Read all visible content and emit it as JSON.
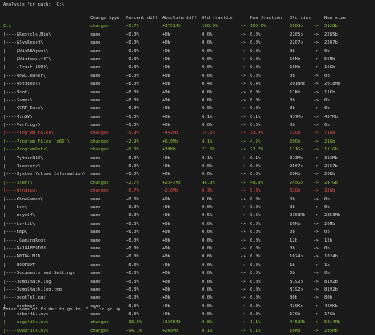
{
  "heading": "Analysis for path:  C:\\",
  "columns": [
    "",
    "Change type",
    "Percent diff",
    "Absolute diff",
    "Old fraction",
    "",
    "New fraction",
    "Old size",
    "",
    "New size"
  ],
  "colors": {
    "background": "#1a1a1a",
    "text": "#d6d6d6",
    "changed_increase": "#8ec63f",
    "changed_decrease": "#e8564e"
  },
  "rows": [
    {
      "status": "increase",
      "path": "C:\\",
      "type": "changed",
      "pd": "+0.7%",
      "ad": "+3781Mb",
      "of": "100.0%",
      "a1": "->",
      "nf": "100.0%",
      "os": "508Gb",
      "a2": "->",
      "ns": "512Gb"
    },
    {
      "status": "same",
      "path": "|----$Recycle.Bin\\",
      "type": "same",
      "pd": "+0.0%",
      "ad": "+0b",
      "of": "0.0%",
      "a1": "->",
      "nf": "0.0%",
      "os": "2285b",
      "a2": "->",
      "ns": "2285b"
    },
    {
      "status": "same",
      "path": "|----$SysReset\\",
      "type": "same",
      "pd": "+0.0%",
      "ad": "+0b",
      "of": "0.0%",
      "a1": "->",
      "nf": "0.0%",
      "os": "2207b",
      "a2": "->",
      "ns": "2207b"
    },
    {
      "status": "same",
      "path": "|----$WinREAgent\\",
      "type": "same",
      "pd": "+0.0%",
      "ad": "+0b",
      "of": "0.0%",
      "a1": "->",
      "nf": "0.0%",
      "os": "0b",
      "a2": "->",
      "ns": "0b"
    },
    {
      "status": "same",
      "path": "|----$Windows.~BT\\",
      "type": "same",
      "pd": "+0.0%",
      "ad": "+0b",
      "of": "0.0%",
      "a1": "->",
      "nf": "0.0%",
      "os": "56Mb",
      "a2": "->",
      "ns": "56Mb"
    },
    {
      "status": "same",
      "path": "|----.Trash-1000\\",
      "type": "same",
      "pd": "+0.0%",
      "ad": "+0b",
      "of": "0.0%",
      "a1": "->",
      "nf": "0.0%",
      "os": "16Kb",
      "a2": "->",
      "ns": "16Kb"
    },
    {
      "status": "same",
      "path": "|----AdwCleaner\\",
      "type": "same",
      "pd": "+0.0%",
      "ad": "+0b",
      "of": "0.0%",
      "a1": "->",
      "nf": "0.0%",
      "os": "0b",
      "a2": "->",
      "ns": "0b"
    },
    {
      "status": "same",
      "path": "|----Autodesk\\",
      "type": "same",
      "pd": "+0.0%",
      "ad": "+0b",
      "of": "0.4%",
      "a1": "->",
      "nf": "0.4%",
      "os": "2018Mb",
      "a2": "->",
      "ns": "2018Mb"
    },
    {
      "status": "same",
      "path": "|----Boot\\",
      "type": "same",
      "pd": "+0.0%",
      "ad": "+0b",
      "of": "0.0%",
      "a1": "->",
      "nf": "0.0%",
      "os": "11Kb",
      "a2": "->",
      "ns": "11Kb"
    },
    {
      "status": "same",
      "path": "|----Games\\",
      "type": "same",
      "pd": "+0.0%",
      "ad": "+0b",
      "of": "0.0%",
      "a1": "->",
      "nf": "0.0%",
      "os": "0b",
      "a2": "->",
      "ns": "0b"
    },
    {
      "status": "same",
      "path": "|----KVRT_Data\\",
      "type": "same",
      "pd": "+0.0%",
      "ad": "+0b",
      "of": "0.0%",
      "a1": "->",
      "nf": "0.0%",
      "os": "0b",
      "a2": "->",
      "ns": "0b"
    },
    {
      "status": "same",
      "path": "|----MinGW\\",
      "type": "same",
      "pd": "+0.0%",
      "ad": "+0b",
      "of": "0.1%",
      "a1": "->",
      "nf": "0.1%",
      "os": "437Mb",
      "a2": "->",
      "ns": "437Mb"
    },
    {
      "status": "same",
      "path": "|----PerfLogs\\",
      "type": "same",
      "pd": "+0.0%",
      "ad": "+0b",
      "of": "0.0%",
      "a1": "->",
      "nf": "0.0%",
      "os": "0b",
      "a2": "->",
      "ns": "0b"
    },
    {
      "status": "decrease",
      "path": "|----Program Files\\",
      "type": "changed",
      "pd": "-5.9%",
      "ad": "-442Mb",
      "of": "14.1%",
      "a1": "->",
      "nf": "13.9%",
      "os": "72Gb",
      "a2": "->",
      "ns": "71Gb"
    },
    {
      "status": "increase",
      "path": "|----Program Files (x86)\\",
      "type": "changed",
      "pd": "+2.9%",
      "ad": "+610Mb",
      "of": "4.1%",
      "a1": "->",
      "nf": "4.2%",
      "os": "20Gb",
      "a2": "->",
      "ns": "21Gb"
    },
    {
      "status": "increase",
      "path": "|----ProgramData\\",
      "type": "changed",
      "pd": "+0.0%",
      "ad": "+39Mb",
      "of": "21.6%",
      "a1": "->",
      "nf": "21.7%",
      "os": "111Gb",
      "a2": "->",
      "ns": "111Gb"
    },
    {
      "status": "same",
      "path": "|----Python310\\",
      "type": "same",
      "pd": "+0.0%",
      "ad": "+0b",
      "of": "0.1%",
      "a1": "->",
      "nf": "0.1%",
      "os": "313Mb",
      "a2": "->",
      "ns": "313Mb"
    },
    {
      "status": "same",
      "path": "|----Recovery\\",
      "type": "same",
      "pd": "+0.0%",
      "ad": "+0b",
      "of": "0.0%",
      "a1": "->",
      "nf": "0.0%",
      "os": "2567b",
      "a2": "->",
      "ns": "2567b"
    },
    {
      "status": "same",
      "path": "|----System Volume Information\\",
      "type": "same",
      "pd": "+0.0%",
      "ad": "+0b",
      "of": "0.0%",
      "a1": "->",
      "nf": "0.0%",
      "os": "20Kb",
      "a2": "->",
      "ns": "20Kb"
    },
    {
      "status": "increase",
      "path": "|----Users\\",
      "type": "changed",
      "pd": "+2.7%",
      "ad": "+2347Mb",
      "of": "48.3%",
      "a1": "->",
      "nf": "48.8%",
      "os": "245Gb",
      "a2": "->",
      "ns": "247Gb"
    },
    {
      "status": "decrease",
      "path": "|----Windows\\",
      "type": "changed",
      "pd": "-0.7%",
      "ad": "-210Mb",
      "of": "6.3%",
      "a1": "->",
      "nf": "6.3%",
      "os": "32Gb",
      "a2": "->",
      "ns": "32Gb"
    },
    {
      "status": "same",
      "path": "|----XboxGames\\",
      "type": "same",
      "pd": "+0.0%",
      "ad": "+0b",
      "of": "0.0%",
      "a1": "->",
      "nf": "0.0%",
      "os": "0b",
      "a2": "->",
      "ns": "0b"
    },
    {
      "status": "same",
      "path": "|----lor\\",
      "type": "same",
      "pd": "+0.0%",
      "ad": "+0b",
      "of": "0.0%",
      "a1": "->",
      "nf": "0.0%",
      "os": "0b",
      "a2": "->",
      "ns": "0b"
    },
    {
      "status": "same",
      "path": "|----msys64\\",
      "type": "same",
      "pd": "+0.0%",
      "ad": "+0b",
      "of": "0.5%",
      "a1": "->",
      "nf": "0.5%",
      "os": "2353Mb",
      "a2": "->",
      "ns": "2353Mb"
    },
    {
      "status": "same",
      "path": "|----ta-lib\\",
      "type": "same",
      "pd": "+0.0%",
      "ad": "+0b",
      "of": "0.0%",
      "a1": "->",
      "nf": "0.0%",
      "os": "20Mb",
      "a2": "->",
      "ns": "20Mb"
    },
    {
      "status": "same",
      "path": "|----tmp\\",
      "type": "same",
      "pd": "+0.0%",
      "ad": "+0b",
      "of": "0.0%",
      "a1": "->",
      "nf": "0.0%",
      "os": "0b",
      "a2": "->",
      "ns": "0b"
    },
    {
      "status": "same",
      "path": "|----.GamingRoot",
      "type": "same",
      "pd": "+0.0%",
      "ad": "+0b",
      "of": "0.0%",
      "a1": "->",
      "nf": "0.0%",
      "os": "12b",
      "a2": "->",
      "ns": "12b"
    },
    {
      "status": "same",
      "path": "|----44144FF9D08",
      "type": "same",
      "pd": "+0.0%",
      "ad": "+0b",
      "of": "0.0%",
      "a1": "->",
      "nf": "0.0%",
      "os": "0b",
      "a2": "->",
      "ns": "0b"
    },
    {
      "status": "same",
      "path": "|----AMTAG.BIN",
      "type": "same",
      "pd": "+0.0%",
      "ad": "+0b",
      "of": "0.0%",
      "a1": "->",
      "nf": "0.0%",
      "os": "1024b",
      "a2": "->",
      "ns": "1024b"
    },
    {
      "status": "same",
      "path": "|----BOOTNXT",
      "type": "same",
      "pd": "+0.0%",
      "ad": "+0b",
      "of": "0.0%",
      "a1": "->",
      "nf": "0.0%",
      "os": "1b",
      "a2": "->",
      "ns": "1b"
    },
    {
      "status": "same",
      "path": "|----Documents and Settings",
      "type": "same",
      "pd": "+0.0%",
      "ad": "+0b",
      "of": "0.0%",
      "a1": "->",
      "nf": "0.0%",
      "os": "0b",
      "a2": "->",
      "ns": "0b"
    },
    {
      "status": "same",
      "path": "|----DumpStack.log",
      "type": "same",
      "pd": "+0.0%",
      "ad": "+0b",
      "of": "0.0%",
      "a1": "->",
      "nf": "0.0%",
      "os": "8192b",
      "a2": "->",
      "ns": "8192b"
    },
    {
      "status": "same",
      "path": "|----DumpStack.log.tmp",
      "type": "same",
      "pd": "+0.0%",
      "ad": "+0b",
      "of": "0.0%",
      "a1": "->",
      "nf": "0.0%",
      "os": "8192b",
      "a2": "->",
      "ns": "8192b"
    },
    {
      "status": "same",
      "path": "|----bootTel.dat",
      "type": "same",
      "pd": "+0.0%",
      "ad": "+0b",
      "of": "0.0%",
      "a1": "->",
      "nf": "0.0%",
      "os": "80b",
      "a2": "->",
      "ns": "80b"
    },
    {
      "status": "same",
      "path": "|----bootmgr",
      "type": "same",
      "pd": "+0.0%",
      "ad": "+0b",
      "of": "0.0%",
      "a1": "->",
      "nf": "0.0%",
      "os": "429Kb",
      "a2": "->",
      "ns": "429Kb"
    },
    {
      "status": "same",
      "path": "|----hiberfil.sys",
      "type": "same",
      "pd": "+0.0%",
      "ad": "+0b",
      "of": "0.0%",
      "a1": "->",
      "nf": "0.0%",
      "os": "17Gb",
      "a2": "->",
      "ns": "17Gb"
    },
    {
      "status": "increase",
      "path": "|----pagefile.sys",
      "type": "changed",
      "pd": "+33.6%",
      "ad": "+1365Mb",
      "of": "0.8%",
      "a1": "->",
      "nf": "1.1%",
      "os": "4452Mb",
      "a2": "->",
      "ns": "5814Mb"
    },
    {
      "status": "increase",
      "path": "|----swapfile.sys",
      "type": "changed",
      "pd": "+94.1%",
      "ad": "+268Mb",
      "of": "0.1%",
      "a1": "->",
      "nf": "0.1%",
      "os": "16Mb",
      "a2": "->",
      "ns": "285Mb"
    }
  ],
  "prompt": "Enter name of folder to go to. \"..\" to go up"
}
